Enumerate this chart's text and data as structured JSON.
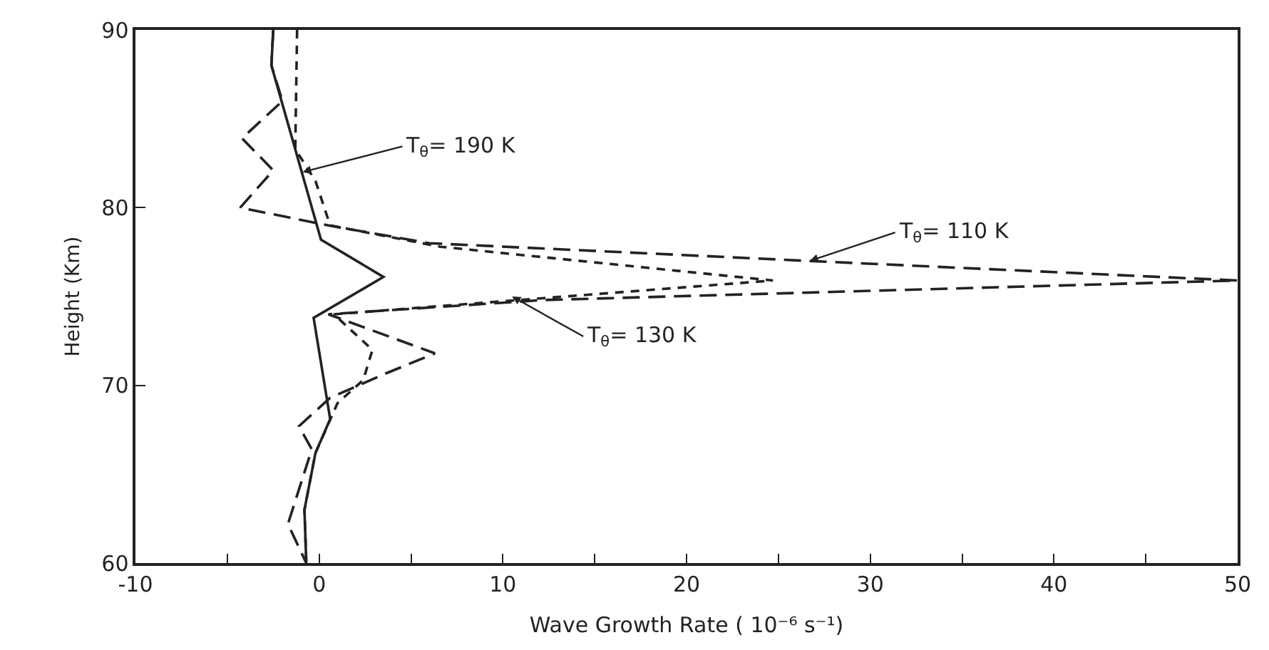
{
  "chart_data": {
    "type": "line",
    "xlabel": "Wave Growth Rate ( 10⁻⁶ s⁻¹)",
    "ylabel": "Height (Km)",
    "xlim": [
      -10,
      50
    ],
    "ylim": [
      60,
      90
    ],
    "xticks": [
      -10,
      {
        "value": -5,
        "label": null
      },
      0,
      {
        "value": 5,
        "label": null
      },
      10,
      {
        "value": 15,
        "label": null
      },
      20,
      {
        "value": 25,
        "label": null
      },
      30,
      {
        "value": 35,
        "label": null
      },
      40,
      {
        "value": 45,
        "label": null
      },
      50
    ],
    "yticks": [
      60,
      70,
      80,
      90
    ],
    "marker": "none",
    "series": [
      {
        "color": "#222222",
        "line_style": "solid",
        "x": [
          -2.5,
          -2.6,
          0.1,
          3.5,
          -0.3,
          0.6,
          -0.2,
          -0.8,
          -0.7
        ],
        "values": [
          90,
          88,
          78.2,
          76.1,
          73.8,
          68.1,
          66.2,
          63,
          60
        ]
      },
      {
        "color": "#222222",
        "line_style": "dashed",
        "x": [
          -2.5,
          -2.6,
          -2.0,
          -4.2,
          -2.5,
          -4.3,
          0.5,
          6,
          26.7,
          50,
          12.2,
          0.5,
          6.3,
          3.7,
          0.6,
          -1.1,
          -0.4,
          -1.7,
          -0.7
        ],
        "values": [
          90,
          88,
          86,
          83.9,
          82.1,
          80,
          79,
          78,
          77,
          75.9,
          74.8,
          74,
          71.8,
          70.7,
          69.3,
          67.7,
          66.4,
          62.2,
          60
        ]
      },
      {
        "color": "#222222",
        "line_style": "dotted",
        "x": [
          -1.2,
          -1.3,
          -0.2,
          0.6,
          6.6,
          24.7,
          0.8,
          2.9,
          2.4,
          1,
          -0.2,
          -0.8,
          -0.7
        ],
        "values": [
          90,
          83.3,
          81.5,
          79,
          77.8,
          75.9,
          74,
          72,
          70.3,
          69,
          66.2,
          63,
          60
        ]
      }
    ],
    "annotations": [
      {
        "text": "T$_{θ}$= 190 K",
        "x": -0.9,
        "y": 82
      },
      {
        "text": "T$_{θ}$= 110 K",
        "x": 26.7,
        "y": 77
      },
      {
        "text": "T$_{θ}$= 130 K",
        "x": 10.5,
        "y": 75
      }
    ]
  }
}
